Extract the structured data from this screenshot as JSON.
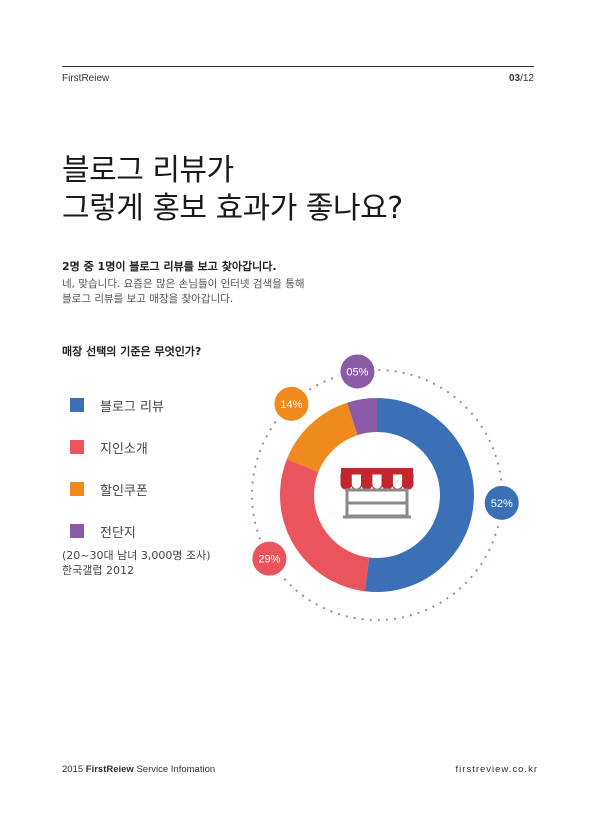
{
  "header": {
    "brand": "FirstReiew",
    "page_current": "03",
    "page_total": "/12"
  },
  "title": {
    "line1": "블로그 리뷰가",
    "line2": "그렇게 홍보 효과가 좋나요?"
  },
  "lead": "2명 중 1명이 블로그 리뷰를 보고 찾아갑니다.",
  "description": {
    "line1": "네, 맞습니다. 요즘은 많은 손님들이 인터넷 검색을 통해",
    "line2": "블로그 리뷰를 보고 매장을 찾아갑니다."
  },
  "note": {
    "line1": "(20~30대 남녀 3,000명 조사)",
    "line2": "한국갤럽 2012"
  },
  "footer": {
    "left_year": "2015",
    "left_brand": "FirstReiew",
    "left_rest": "Service Infomation",
    "right": "firstreview.co.kr"
  },
  "chart_data": {
    "type": "pie",
    "style": "donut",
    "title": "매장 선택의 기준은 무엇인가?",
    "center_icon": "storefront-icon",
    "slices": [
      {
        "label": "블로그 리뷰",
        "value": 52,
        "display": "52%",
        "color": "#3b70b7"
      },
      {
        "label": "지인소개",
        "value": 29,
        "display": "29%",
        "color": "#e9545d"
      },
      {
        "label": "할인쿠폰",
        "value": 14,
        "display": "14%",
        "color": "#ef8a1c"
      },
      {
        "label": "전단지",
        "value": 5,
        "display": "05%",
        "color": "#8c5ba8"
      }
    ]
  }
}
